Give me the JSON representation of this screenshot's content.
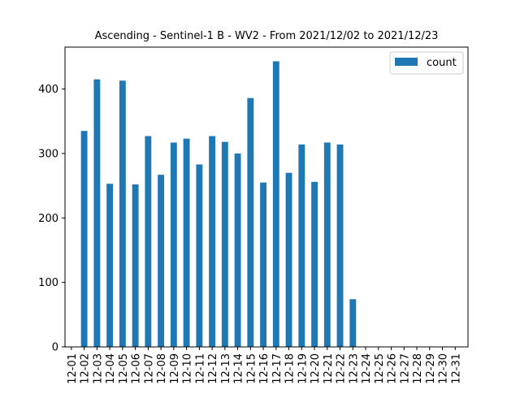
{
  "chart_data": {
    "type": "bar",
    "title": "Ascending - Sentinel-1 B - WV2 - From 2021/12/02 to 2021/12/23",
    "xlabel": "",
    "ylabel": "",
    "categories": [
      "12-01",
      "12-02",
      "12-03",
      "12-04",
      "12-05",
      "12-06",
      "12-07",
      "12-08",
      "12-09",
      "12-10",
      "12-11",
      "12-12",
      "12-13",
      "12-14",
      "12-15",
      "12-16",
      "12-17",
      "12-18",
      "12-19",
      "12-20",
      "12-21",
      "12-22",
      "12-23",
      "12-24",
      "12-25",
      "12-26",
      "12-27",
      "12-28",
      "12-29",
      "12-30",
      "12-31"
    ],
    "series": [
      {
        "name": "count",
        "color": "#1f77b4",
        "values": [
          0,
          335,
          415,
          253,
          413,
          252,
          327,
          267,
          317,
          323,
          283,
          327,
          318,
          300,
          386,
          255,
          443,
          270,
          314,
          256,
          317,
          314,
          74,
          0,
          0,
          0,
          0,
          0,
          0,
          0,
          0
        ]
      }
    ],
    "ylim": [
      0,
      465
    ],
    "yticks": [
      0,
      100,
      200,
      300,
      400
    ],
    "grid": false,
    "legend": "top-right"
  }
}
